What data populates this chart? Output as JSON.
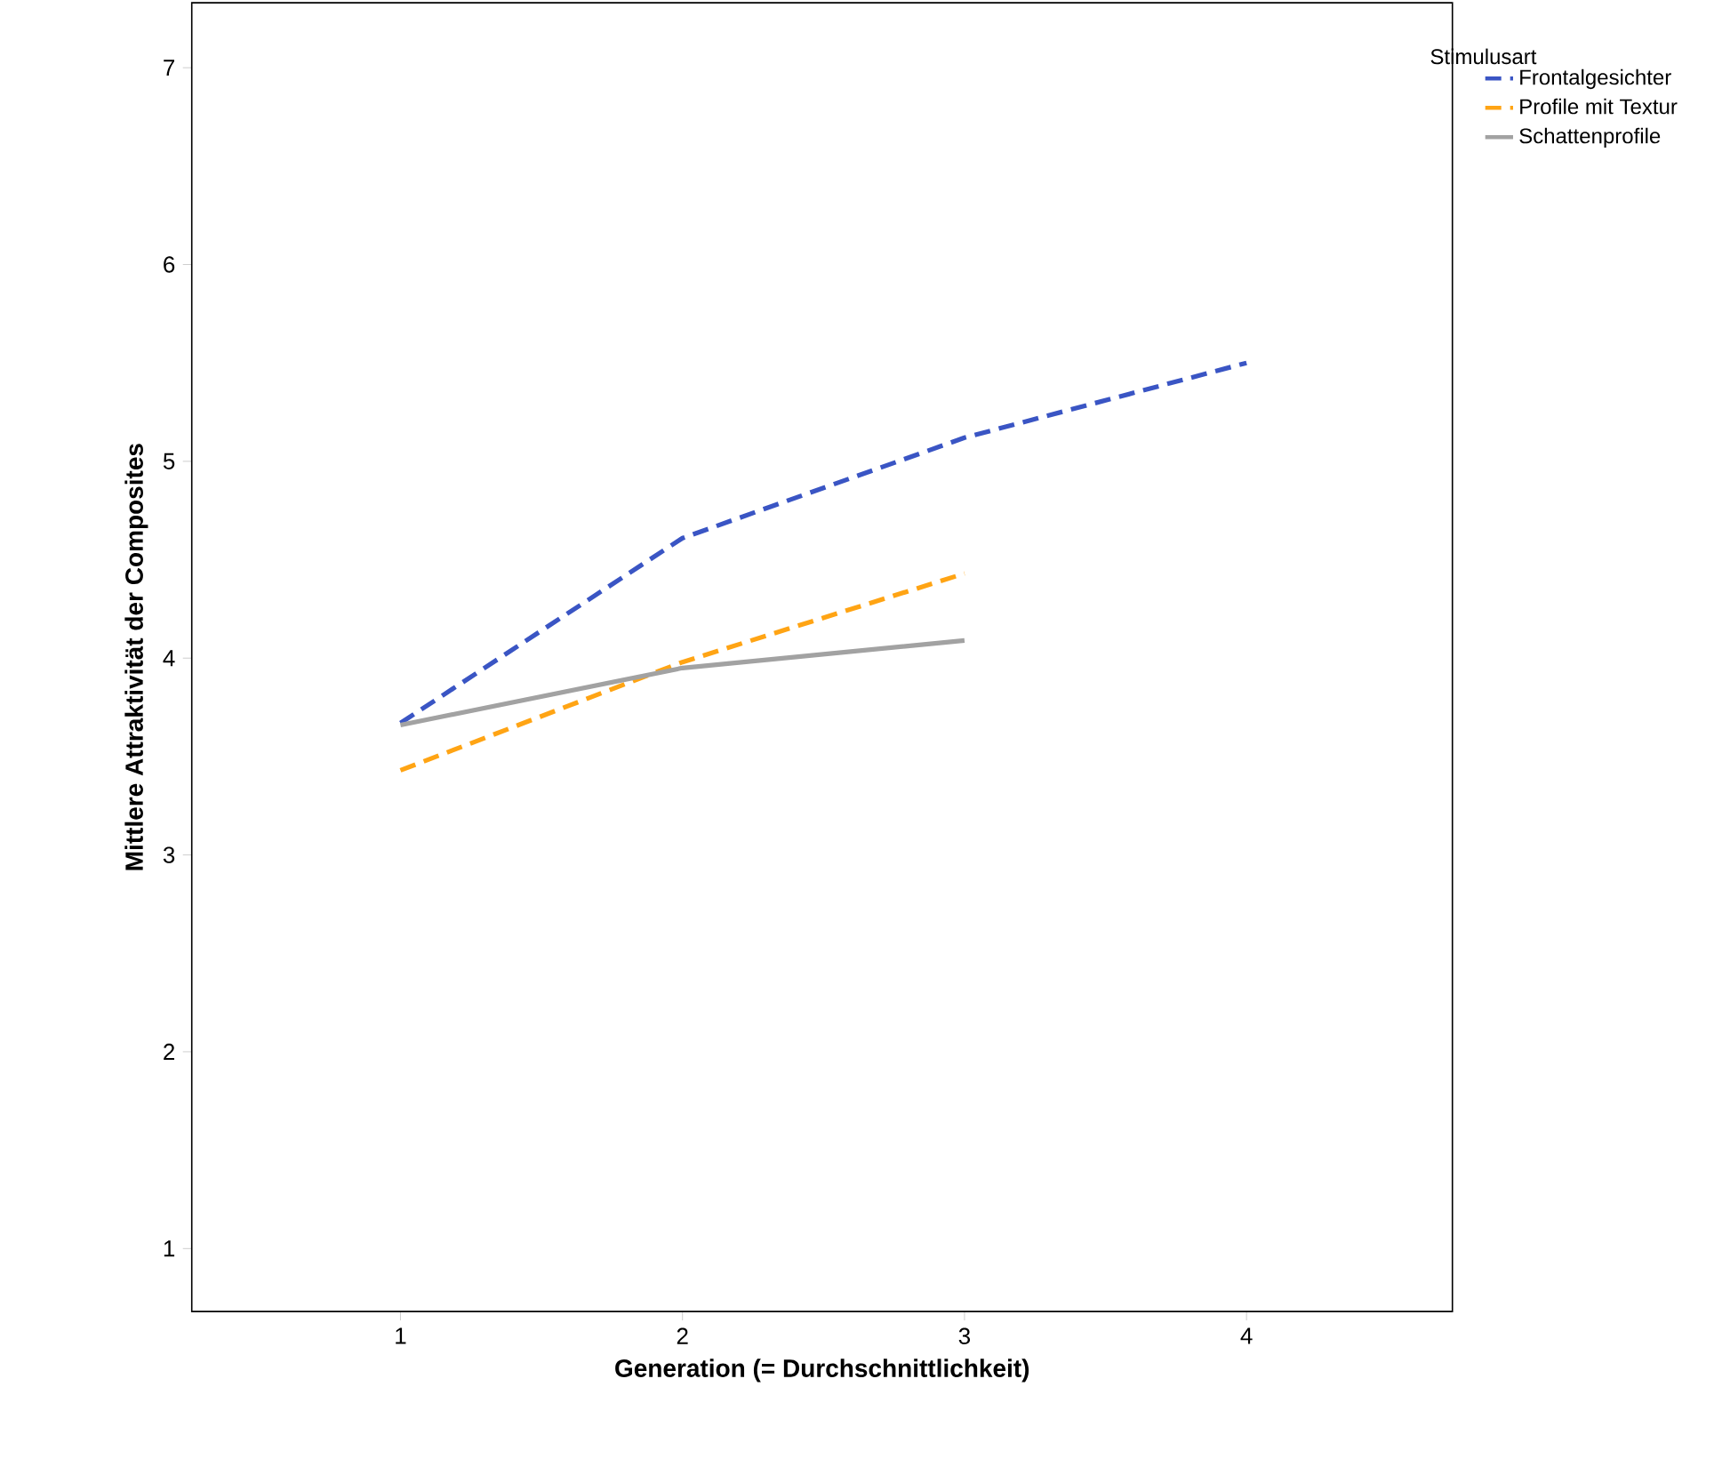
{
  "chart_data": {
    "type": "line",
    "xlabel": "Generation (= Durchschnittlichkeit)",
    "ylabel": "Mittlere Attraktivität der Composites",
    "legend_title": "Stimulusart",
    "x": [
      1,
      2,
      3,
      4
    ],
    "series": [
      {
        "name": "Frontalgesichter",
        "color": "#3a55c4",
        "line_style": "dashed",
        "values": [
          3.67,
          4.61,
          5.12,
          5.5
        ]
      },
      {
        "name": "Profile mit Textur",
        "color": "#ffa414",
        "line_style": "dashed",
        "values": [
          3.43,
          3.98,
          4.43,
          null
        ]
      },
      {
        "name": "Schattenprofile",
        "color": "#a2a2a2",
        "line_style": "solid",
        "values": [
          3.66,
          3.95,
          4.09,
          null
        ]
      }
    ],
    "xlim": [
      0.26,
      4.73
    ],
    "ylim": [
      0.68,
      7.33
    ],
    "xticks": [
      1,
      2,
      3,
      4
    ],
    "yticks": [
      1,
      2,
      3,
      4,
      5,
      6,
      7
    ],
    "grid": false,
    "legend": "top right",
    "marker": "none"
  }
}
